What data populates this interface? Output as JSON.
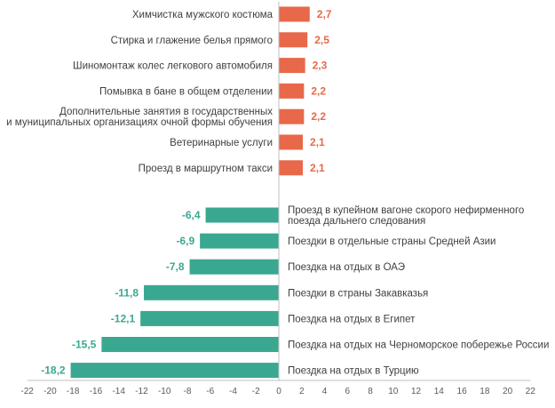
{
  "chart_data": {
    "type": "bar",
    "orientation": "horizontal",
    "xlim": [
      -22,
      22
    ],
    "x_ticks": [
      -22,
      -20,
      -18,
      -16,
      -14,
      -12,
      -10,
      -8,
      -6,
      -4,
      -2,
      0,
      2,
      4,
      6,
      8,
      10,
      12,
      14,
      16,
      18,
      20,
      22
    ],
    "grid": false,
    "colors": {
      "positive": "#E8684A",
      "negative": "#3AA890",
      "positive_label": "#E8684A",
      "negative_label": "#3AA890"
    },
    "positive_bars": [
      {
        "label": [
          "Химчистка мужского костюма"
        ],
        "value": 2.7,
        "value_label": "2,7"
      },
      {
        "label": [
          "Стирка и глажение белья прямого"
        ],
        "value": 2.5,
        "value_label": "2,5"
      },
      {
        "label": [
          "Шиномонтаж колес легкового автомобиля"
        ],
        "value": 2.3,
        "value_label": "2,3"
      },
      {
        "label": [
          "Помывка в бане в общем отделении"
        ],
        "value": 2.2,
        "value_label": "2,2"
      },
      {
        "label": [
          "Дополнительные занятия в государственных",
          "и муниципальных организациях очной формы обучения"
        ],
        "value": 2.2,
        "value_label": "2,2"
      },
      {
        "label": [
          "Ветеринарные услуги"
        ],
        "value": 2.1,
        "value_label": "2,1"
      },
      {
        "label": [
          "Проезд в маршрутном такси"
        ],
        "value": 2.1,
        "value_label": "2,1"
      }
    ],
    "negative_bars": [
      {
        "label": [
          "Проезд в купейном вагоне скорого нефирменного",
          "поезда  дальнего следования"
        ],
        "value": -6.4,
        "value_label": "-6,4"
      },
      {
        "label": [
          "Поездки в отдельные страны Средней Азии"
        ],
        "value": -6.9,
        "value_label": "-6,9"
      },
      {
        "label": [
          "Поездка на отдых в ОАЭ"
        ],
        "value": -7.8,
        "value_label": "-7,8"
      },
      {
        "label": [
          "Поездки в страны Закавказья"
        ],
        "value": -11.8,
        "value_label": "-11,8"
      },
      {
        "label": [
          "Поездка на отдых в Египет"
        ],
        "value": -12.1,
        "value_label": "-12,1"
      },
      {
        "label": [
          "Поездка на отдых на Черноморское побережье России"
        ],
        "value": -15.5,
        "value_label": "-15,5"
      },
      {
        "label": [
          "Поездка на отдых в Турцию"
        ],
        "value": -18.2,
        "value_label": "-18,2"
      }
    ]
  }
}
